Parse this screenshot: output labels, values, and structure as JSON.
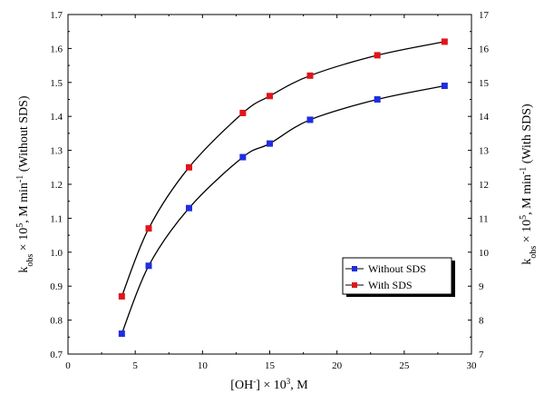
{
  "chart_data": {
    "type": "line",
    "x": [
      4,
      6,
      9,
      13,
      15,
      18,
      23,
      28
    ],
    "xlim": [
      0,
      30
    ],
    "xticks": [
      0,
      5,
      10,
      15,
      20,
      25,
      30
    ],
    "xlabel": {
      "pre": "[OH",
      "sup1": "-",
      "mid": "] × 10",
      "sup2": "3",
      "post": ", M"
    },
    "left_axis": {
      "ylim": [
        0.7,
        1.7
      ],
      "ticks": [
        "0.7",
        "0.8",
        "0.9",
        "1.0",
        "1.1",
        "1.2",
        "1.3",
        "1.4",
        "1.5",
        "1.6",
        "1.7"
      ],
      "label": {
        "pre": "k",
        "sub": "obs",
        "mid": " × 10",
        "sup": "5",
        "mid2": ", M min",
        "sup2": "-1",
        "post": " (Without SDS)"
      }
    },
    "right_axis": {
      "ylim": [
        7,
        17
      ],
      "ticks": [
        "7",
        "8",
        "9",
        "10",
        "11",
        "12",
        "13",
        "14",
        "15",
        "16",
        "17"
      ],
      "label": {
        "pre": "k",
        "sub": "obs",
        "mid": " × 10",
        "sup": "5",
        "mid2": ", M min",
        "sup2": "-1",
        "post": " (With SDS)"
      }
    },
    "series": [
      {
        "name": "Without SDS",
        "axis": "left",
        "color": "#1f2de0",
        "values": [
          0.76,
          0.96,
          1.13,
          1.28,
          1.32,
          1.39,
          1.45,
          1.49
        ]
      },
      {
        "name": "With SDS",
        "axis": "right",
        "color": "#e0151a",
        "values": [
          8.7,
          10.7,
          12.5,
          14.1,
          14.6,
          15.2,
          15.8,
          16.2
        ]
      }
    ],
    "legend_position": "bottom-right",
    "grid": false
  }
}
